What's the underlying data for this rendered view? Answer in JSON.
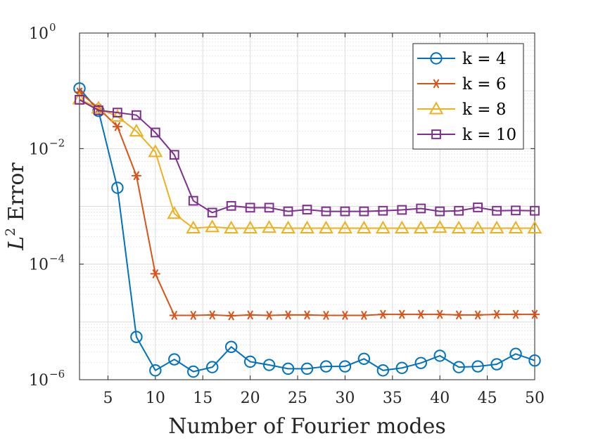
{
  "chart_data": {
    "type": "line",
    "title": "",
    "xlabel": "Number of Fourier modes",
    "ylabel": "L^2 Error",
    "yscale": "log",
    "xlim": [
      2,
      50
    ],
    "ylim": [
      1e-06,
      1
    ],
    "grid": true,
    "legend_position": "top-right",
    "x_ticks": [
      5,
      10,
      15,
      20,
      25,
      30,
      35,
      40,
      45,
      50
    ],
    "y_ticks": [
      {
        "value": 1e-06,
        "base": "10",
        "exp": "−6"
      },
      {
        "value": 0.0001,
        "base": "10",
        "exp": "−4"
      },
      {
        "value": 0.01,
        "base": "10",
        "exp": "−2"
      },
      {
        "value": 1,
        "base": "10",
        "exp": "0"
      }
    ],
    "x": [
      2,
      4,
      6,
      8,
      10,
      12,
      14,
      16,
      18,
      20,
      22,
      24,
      26,
      28,
      30,
      32,
      34,
      36,
      38,
      40,
      42,
      44,
      46,
      48,
      50
    ],
    "series": [
      {
        "name": "k = 4",
        "k": "4",
        "color": "#0072BD",
        "marker": "circle",
        "values": [
          0.11,
          0.045,
          0.0021,
          5.5e-06,
          1.45e-06,
          2.25e-06,
          1.38e-06,
          1.65e-06,
          3.7e-06,
          2.05e-06,
          1.8e-06,
          1.55e-06,
          1.55e-06,
          1.7e-06,
          1.7e-06,
          2.3e-06,
          1.45e-06,
          1.6e-06,
          1.95e-06,
          2.6e-06,
          1.65e-06,
          1.7e-06,
          1.85e-06,
          2.8e-06,
          2.15e-06
        ]
      },
      {
        "name": "k = 6",
        "k": "6",
        "color": "#D95319",
        "marker": "asterisk",
        "values": [
          0.095,
          0.05,
          0.024,
          0.0034,
          6.8e-05,
          1.3e-05,
          1.3e-05,
          1.32e-05,
          1.28e-05,
          1.32e-05,
          1.3e-05,
          1.32e-05,
          1.32e-05,
          1.3e-05,
          1.3e-05,
          1.3e-05,
          1.35e-05,
          1.35e-05,
          1.35e-05,
          1.35e-05,
          1.32e-05,
          1.32e-05,
          1.35e-05,
          1.35e-05,
          1.35e-05
        ]
      },
      {
        "name": "k = 8",
        "k": "8",
        "color": "#EDB120",
        "marker": "triangle",
        "values": [
          0.072,
          0.05,
          0.036,
          0.02,
          0.0088,
          0.00075,
          0.00042,
          0.00044,
          0.00042,
          0.00042,
          0.00043,
          0.00042,
          0.00042,
          0.00042,
          0.00042,
          0.00042,
          0.00042,
          0.00042,
          0.00042,
          0.00043,
          0.00042,
          0.00042,
          0.00042,
          0.00042,
          0.00042
        ]
      },
      {
        "name": "k = 10",
        "k": "10",
        "color": "#7E2F8E",
        "marker": "square",
        "values": [
          0.07,
          0.046,
          0.042,
          0.038,
          0.019,
          0.0078,
          0.00125,
          0.00078,
          0.00102,
          0.00095,
          0.00095,
          0.00082,
          0.00088,
          0.00082,
          0.00082,
          0.00082,
          0.00084,
          0.00087,
          0.00092,
          0.00082,
          0.00084,
          0.00096,
          0.00084,
          0.00085,
          0.00084
        ]
      }
    ]
  }
}
